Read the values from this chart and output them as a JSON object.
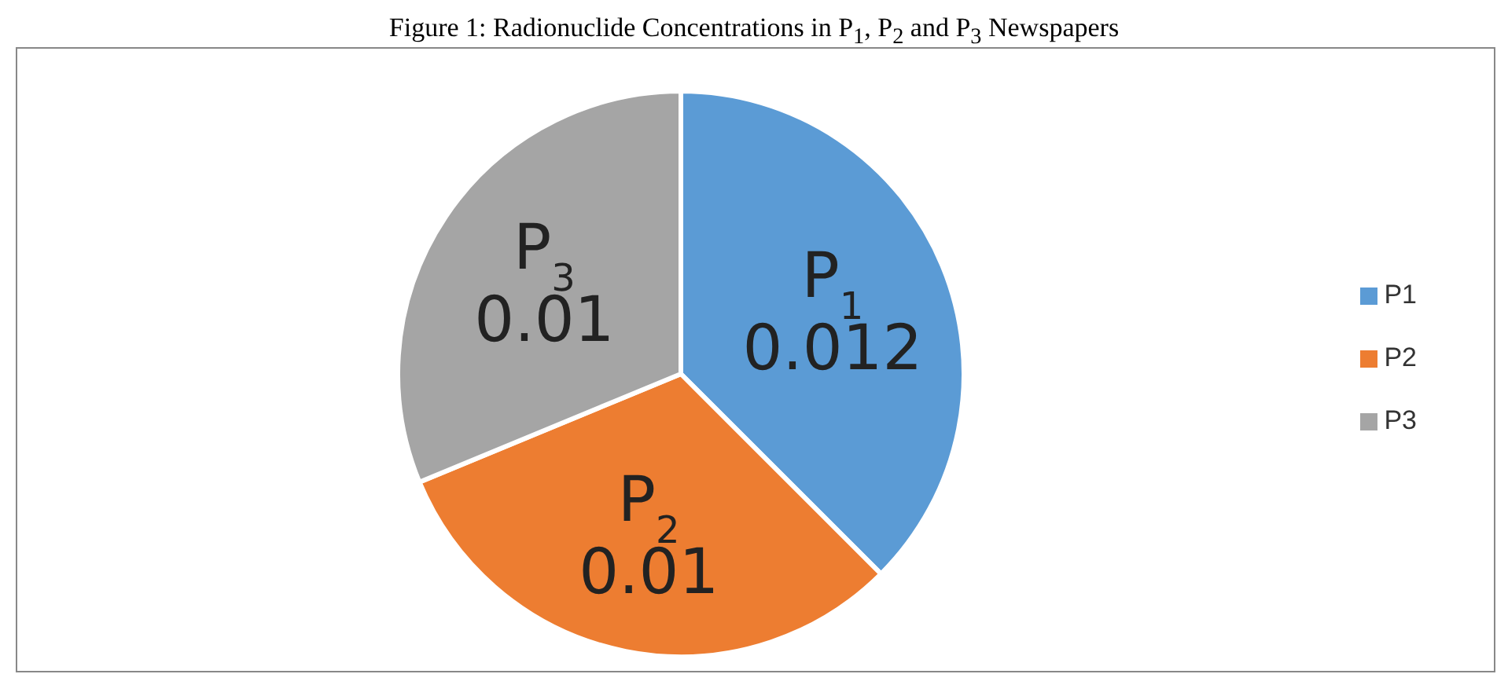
{
  "chart_data": {
    "type": "pie",
    "title": "Figure 1: Radionuclide Concentrations in P$_{1}$, P$_{2}$ and P$_{3}$ Newspapers",
    "categories": [
      "P1",
      "P2",
      "P3"
    ],
    "values": [
      0.012,
      0.01,
      0.01
    ],
    "colors": [
      "#5b9bd5",
      "#ed7d31",
      "#a5a5a5"
    ],
    "value_labels": [
      "P$_{1}$\n0.012",
      "P$_{2}$\n0.01",
      "P$_{3}$\n0.01"
    ],
    "legend": "right"
  }
}
